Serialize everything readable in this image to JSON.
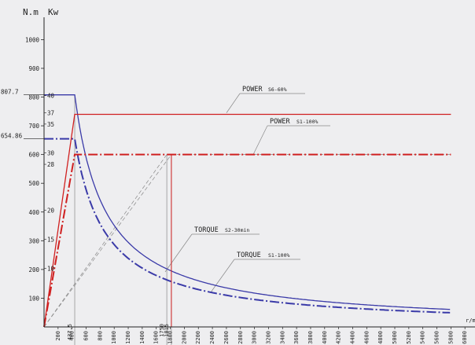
{
  "chart_data": {
    "type": "line",
    "y_axis_label": "N.m",
    "y2_axis_label": "Kw",
    "x_axis_label": "r/m",
    "x_ticks": [
      "200",
      "400",
      "600",
      "800",
      "1000",
      "1200",
      "1400",
      "1600",
      "1800",
      "2000",
      "2200",
      "2400",
      "2600",
      "2800",
      "3000",
      "3200",
      "3400",
      "3600",
      "3800",
      "4000",
      "4200",
      "4400",
      "4600",
      "4800",
      "5000",
      "5200",
      "5400",
      "5600",
      "5800"
    ],
    "x_ticks_extra": [
      "6000"
    ],
    "y_ticks": [
      "100",
      "200",
      "300",
      "400",
      "500",
      "600",
      "700",
      "800",
      "900",
      "1000"
    ],
    "y_special": [
      {
        "label": "807.7",
        "value": 807.7
      },
      {
        "label": "654.86",
        "value": 654.86
      }
    ],
    "kw_ticks": [
      {
        "label": "40",
        "nm": 805
      },
      {
        "label": "37",
        "nm": 745
      },
      {
        "label": "35",
        "nm": 706
      },
      {
        "label": "30",
        "nm": 606
      },
      {
        "label": "28",
        "nm": 566
      },
      {
        "label": "20",
        "nm": 406
      },
      {
        "label": "15",
        "nm": 305
      },
      {
        "label": "10",
        "nm": 204
      }
    ],
    "x_markers": [
      {
        "label": "437.5",
        "rpm": 437.5
      },
      {
        "label": "1750",
        "rpm": 1750
      },
      {
        "label": "1815",
        "rpm": 1815
      }
    ],
    "annotations": {
      "power_s6_main": "POWER",
      "power_s6_sub": "S6-60%",
      "power_s1_main": "POWER",
      "power_s1_sub": "S1-100%",
      "torque_s2_main": "TORQUE",
      "torque_s2_sub": "S2-30min",
      "torque_s1_main": "TORQUE",
      "torque_s1_sub": "S1-100%"
    },
    "series": [
      {
        "name": "TORQUE S2-30min",
        "color": "#3a3aa8",
        "style": "solid",
        "base_speed": 437.5,
        "constant": 807.7
      },
      {
        "name": "TORQUE S1-100%",
        "color": "#3a3aa8",
        "style": "dash-dot",
        "base_speed": 437.5,
        "constant": 654.86
      },
      {
        "name": "POWER S6-60%",
        "color": "#d02020",
        "style": "solid",
        "kw": [
          [
            0,
            0
          ],
          [
            437.5,
            37
          ],
          [
            5800,
            37
          ]
        ]
      },
      {
        "name": "POWER S1-100%",
        "color": "#d02020",
        "style": "dash-dot",
        "kw": [
          [
            0,
            0
          ],
          [
            437.5,
            30
          ],
          [
            1815,
            30
          ],
          [
            5800,
            30
          ]
        ]
      }
    ],
    "xlim": [
      0,
      5800
    ],
    "ylim": [
      0,
      1000
    ]
  }
}
